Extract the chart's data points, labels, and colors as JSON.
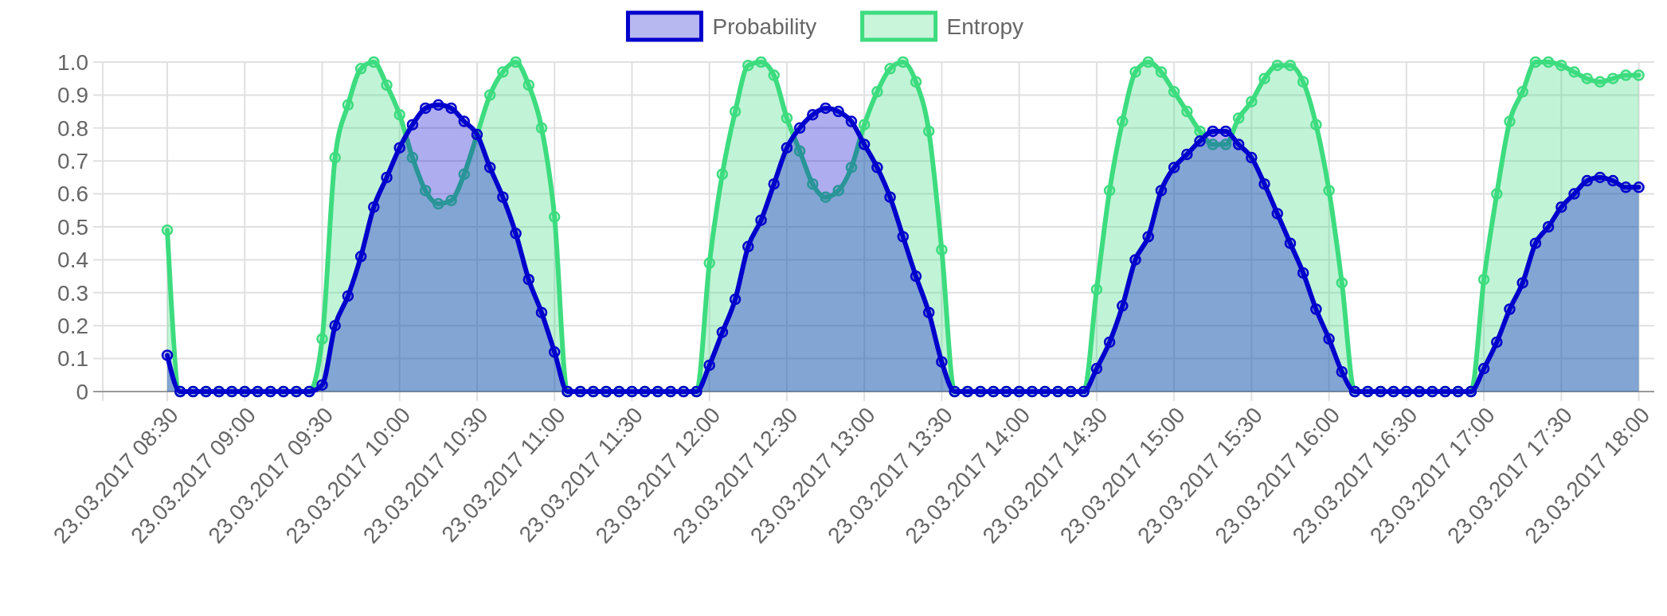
{
  "chart_data": {
    "type": "area",
    "x": [
      "2017-03-23T08:30",
      "2017-03-23T08:35",
      "2017-03-23T08:40",
      "2017-03-23T08:45",
      "2017-03-23T08:50",
      "2017-03-23T08:55",
      "2017-03-23T09:00",
      "2017-03-23T09:05",
      "2017-03-23T09:10",
      "2017-03-23T09:15",
      "2017-03-23T09:20",
      "2017-03-23T09:25",
      "2017-03-23T09:30",
      "2017-03-23T09:35",
      "2017-03-23T09:40",
      "2017-03-23T09:45",
      "2017-03-23T09:50",
      "2017-03-23T09:55",
      "2017-03-23T10:00",
      "2017-03-23T10:05",
      "2017-03-23T10:10",
      "2017-03-23T10:15",
      "2017-03-23T10:20",
      "2017-03-23T10:25",
      "2017-03-23T10:30",
      "2017-03-23T10:35",
      "2017-03-23T10:40",
      "2017-03-23T10:45",
      "2017-03-23T10:50",
      "2017-03-23T10:55",
      "2017-03-23T11:00",
      "2017-03-23T11:05",
      "2017-03-23T11:10",
      "2017-03-23T11:15",
      "2017-03-23T11:20",
      "2017-03-23T11:25",
      "2017-03-23T11:30",
      "2017-03-23T11:35",
      "2017-03-23T11:40",
      "2017-03-23T11:45",
      "2017-03-23T11:50",
      "2017-03-23T11:55",
      "2017-03-23T12:00",
      "2017-03-23T12:05",
      "2017-03-23T12:10",
      "2017-03-23T12:15",
      "2017-03-23T12:20",
      "2017-03-23T12:25",
      "2017-03-23T12:30",
      "2017-03-23T12:35",
      "2017-03-23T12:40",
      "2017-03-23T12:45",
      "2017-03-23T12:50",
      "2017-03-23T12:55",
      "2017-03-23T13:00",
      "2017-03-23T13:05",
      "2017-03-23T13:10",
      "2017-03-23T13:15",
      "2017-03-23T13:20",
      "2017-03-23T13:25",
      "2017-03-23T13:30",
      "2017-03-23T13:35",
      "2017-03-23T13:40",
      "2017-03-23T13:45",
      "2017-03-23T13:50",
      "2017-03-23T13:55",
      "2017-03-23T14:00",
      "2017-03-23T14:05",
      "2017-03-23T14:10",
      "2017-03-23T14:15",
      "2017-03-23T14:20",
      "2017-03-23T14:25",
      "2017-03-23T14:30",
      "2017-03-23T14:35",
      "2017-03-23T14:40",
      "2017-03-23T14:45",
      "2017-03-23T14:50",
      "2017-03-23T14:55",
      "2017-03-23T15:00",
      "2017-03-23T15:05",
      "2017-03-23T15:10",
      "2017-03-23T15:15",
      "2017-03-23T15:20",
      "2017-03-23T15:25",
      "2017-03-23T15:30",
      "2017-03-23T15:35",
      "2017-03-23T15:40",
      "2017-03-23T15:45",
      "2017-03-23T15:50",
      "2017-03-23T15:55",
      "2017-03-23T16:00",
      "2017-03-23T16:05",
      "2017-03-23T16:10",
      "2017-03-23T16:15",
      "2017-03-23T16:20",
      "2017-03-23T16:25",
      "2017-03-23T16:30",
      "2017-03-23T16:35",
      "2017-03-23T16:40",
      "2017-03-23T16:45",
      "2017-03-23T16:50",
      "2017-03-23T16:55",
      "2017-03-23T17:00",
      "2017-03-23T17:05",
      "2017-03-23T17:10",
      "2017-03-23T17:15",
      "2017-03-23T17:20",
      "2017-03-23T17:25",
      "2017-03-23T17:30",
      "2017-03-23T17:35",
      "2017-03-23T17:40",
      "2017-03-23T17:45",
      "2017-03-23T17:50",
      "2017-03-23T17:55",
      "2017-03-23T18:00"
    ],
    "series": [
      {
        "name": "Probability",
        "color": "#0000cc",
        "values": [
          0.11,
          0,
          0,
          0,
          0,
          0,
          0,
          0,
          0,
          0,
          0,
          0,
          0.02,
          0.2,
          0.29,
          0.41,
          0.56,
          0.65,
          0.74,
          0.81,
          0.86,
          0.87,
          0.86,
          0.82,
          0.78,
          0.68,
          0.59,
          0.48,
          0.34,
          0.24,
          0.12,
          0,
          0,
          0,
          0,
          0,
          0,
          0,
          0,
          0,
          0,
          0,
          0.08,
          0.18,
          0.28,
          0.44,
          0.52,
          0.63,
          0.74,
          0.8,
          0.84,
          0.86,
          0.85,
          0.82,
          0.75,
          0.68,
          0.59,
          0.47,
          0.35,
          0.24,
          0.09,
          0,
          0,
          0,
          0,
          0,
          0,
          0,
          0,
          0,
          0,
          0,
          0.07,
          0.15,
          0.26,
          0.4,
          0.47,
          0.61,
          0.68,
          0.72,
          0.76,
          0.79,
          0.79,
          0.75,
          0.71,
          0.63,
          0.54,
          0.45,
          0.36,
          0.25,
          0.16,
          0.06,
          0,
          0,
          0,
          0,
          0,
          0,
          0,
          0,
          0,
          0,
          0.07,
          0.15,
          0.25,
          0.33,
          0.45,
          0.5,
          0.56,
          0.6,
          0.64,
          0.65,
          0.64,
          0.62,
          0.62
        ]
      },
      {
        "name": "Entropy",
        "color": "#3ddc7f",
        "values": [
          0.49,
          0,
          0,
          0,
          0,
          0,
          0,
          0,
          0,
          0,
          0,
          0,
          0.16,
          0.71,
          0.87,
          0.98,
          1.0,
          0.93,
          0.84,
          0.71,
          0.61,
          0.57,
          0.58,
          0.66,
          0.78,
          0.9,
          0.97,
          1.0,
          0.93,
          0.8,
          0.53,
          0,
          0,
          0,
          0,
          0,
          0,
          0,
          0,
          0,
          0,
          0,
          0.39,
          0.66,
          0.85,
          0.99,
          1.0,
          0.96,
          0.83,
          0.73,
          0.63,
          0.59,
          0.61,
          0.68,
          0.81,
          0.91,
          0.98,
          1.0,
          0.94,
          0.79,
          0.43,
          0,
          0,
          0,
          0,
          0,
          0,
          0,
          0,
          0,
          0,
          0,
          0.31,
          0.61,
          0.82,
          0.97,
          1.0,
          0.97,
          0.91,
          0.85,
          0.79,
          0.75,
          0.75,
          0.83,
          0.88,
          0.95,
          0.99,
          0.99,
          0.94,
          0.81,
          0.61,
          0.33,
          0,
          0,
          0,
          0,
          0,
          0,
          0,
          0,
          0,
          0,
          0.34,
          0.6,
          0.82,
          0.91,
          1.0,
          1.0,
          0.99,
          0.97,
          0.95,
          0.94,
          0.95,
          0.96,
          0.96
        ]
      }
    ],
    "xlim": [
      "2017-03-23T08:05",
      "2017-03-23T18:06"
    ],
    "xticks": [
      {
        "value": "2017-03-23T08:30",
        "label": "23.03.2017 08:30"
      },
      {
        "value": "2017-03-23T09:00",
        "label": "23.03.2017 09:00"
      },
      {
        "value": "2017-03-23T09:30",
        "label": "23.03.2017 09:30"
      },
      {
        "value": "2017-03-23T10:00",
        "label": "23.03.2017 10:00"
      },
      {
        "value": "2017-03-23T10:30",
        "label": "23.03.2017 10:30"
      },
      {
        "value": "2017-03-23T11:00",
        "label": "23.03.2017 11:00"
      },
      {
        "value": "2017-03-23T11:30",
        "label": "23.03.2017 11:30"
      },
      {
        "value": "2017-03-23T12:00",
        "label": "23.03.2017 12:00"
      },
      {
        "value": "2017-03-23T12:30",
        "label": "23.03.2017 12:30"
      },
      {
        "value": "2017-03-23T13:00",
        "label": "23.03.2017 13:00"
      },
      {
        "value": "2017-03-23T13:30",
        "label": "23.03.2017 13:30"
      },
      {
        "value": "2017-03-23T14:00",
        "label": "23.03.2017 14:00"
      },
      {
        "value": "2017-03-23T14:30",
        "label": "23.03.2017 14:30"
      },
      {
        "value": "2017-03-23T15:00",
        "label": "23.03.2017 15:00"
      },
      {
        "value": "2017-03-23T15:30",
        "label": "23.03.2017 15:30"
      },
      {
        "value": "2017-03-23T16:00",
        "label": "23.03.2017 16:00"
      },
      {
        "value": "2017-03-23T16:30",
        "label": "23.03.2017 16:30"
      },
      {
        "value": "2017-03-23T17:00",
        "label": "23.03.2017 17:00"
      },
      {
        "value": "2017-03-23T17:30",
        "label": "23.03.2017 17:30"
      },
      {
        "value": "2017-03-23T18:00",
        "label": "23.03.2017 18:00"
      }
    ],
    "ylim": [
      0,
      1
    ],
    "yticks": [
      0,
      0.1,
      0.2,
      0.3,
      0.4,
      0.5,
      0.6,
      0.7,
      0.8,
      0.9,
      {
        "value": 1,
        "label": "1.0"
      }
    ],
    "grid": true,
    "legend": "top",
    "marker": "circle"
  }
}
